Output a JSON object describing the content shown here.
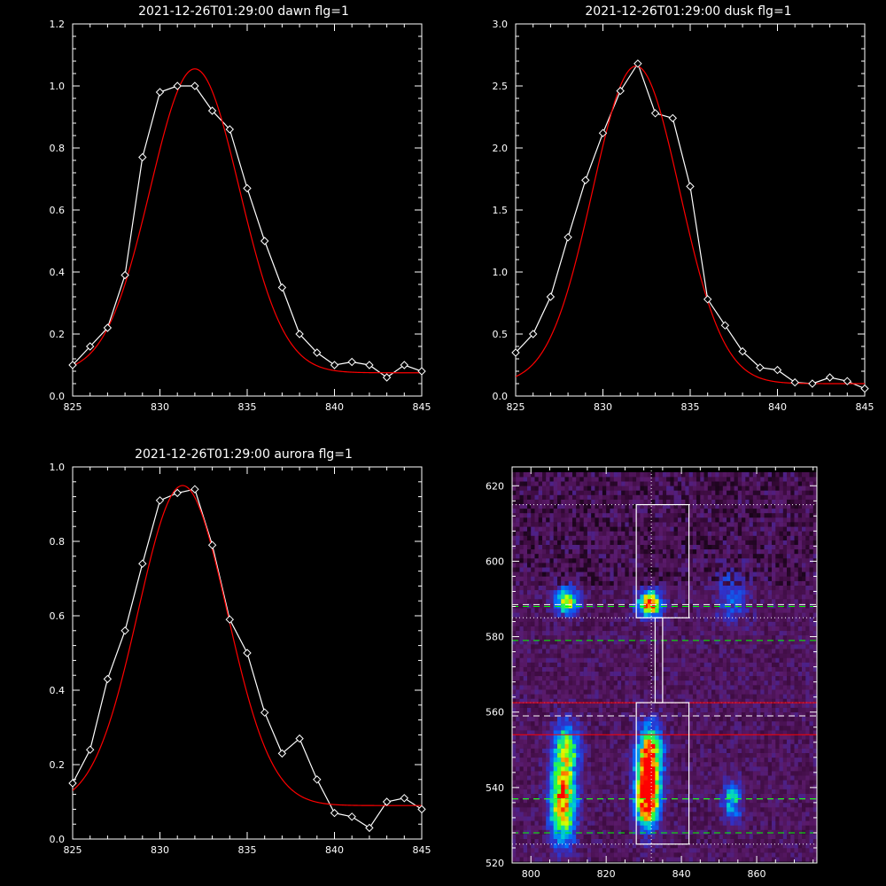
{
  "chart_data": [
    {
      "type": "line",
      "title": "2021-12-26T01:29:00 dawn flg=1",
      "xlim": [
        825,
        845
      ],
      "ylim": [
        0.0,
        1.2
      ],
      "xticks": [
        825,
        830,
        835,
        840,
        845
      ],
      "xtick_labels": [
        "825",
        "830",
        "835",
        "840",
        "845"
      ],
      "yticks": [
        0.0,
        0.2,
        0.4,
        0.6,
        0.8,
        1.0,
        1.2
      ],
      "ytick_labels": [
        "0.0",
        "0.2",
        "0.4",
        "0.6",
        "0.8",
        "1.0",
        "1.2"
      ],
      "series": [
        {
          "color": "#ffffff",
          "marker": "diamond",
          "x": [
            825,
            826,
            827,
            828,
            829,
            830,
            831,
            832,
            833,
            834,
            835,
            836,
            837,
            838,
            839,
            840,
            841,
            842,
            843,
            844,
            845
          ],
          "y": [
            0.1,
            0.16,
            0.22,
            0.39,
            0.77,
            0.98,
            1.0,
            1.0,
            0.92,
            0.86,
            0.67,
            0.5,
            0.35,
            0.2,
            0.14,
            0.1,
            0.11,
            0.1,
            0.06,
            0.1,
            0.08
          ]
        },
        {
          "color": "#ff0000",
          "fit": "gaussian",
          "amplitude": 0.98,
          "center": 832.0,
          "sigma": 2.55,
          "offset": 0.075
        }
      ]
    },
    {
      "type": "line",
      "title": "2021-12-26T01:29:00 dusk flg=1",
      "xlim": [
        825,
        845
      ],
      "ylim": [
        0.0,
        3.0
      ],
      "xticks": [
        825,
        830,
        835,
        840,
        845
      ],
      "xtick_labels": [
        "825",
        "830",
        "835",
        "840",
        "845"
      ],
      "yticks": [
        0.0,
        0.5,
        1.0,
        1.5,
        2.0,
        2.5,
        3.0
      ],
      "ytick_labels": [
        "0.0",
        "0.5",
        "1.0",
        "1.5",
        "2.0",
        "2.5",
        "3.0"
      ],
      "series": [
        {
          "color": "#ffffff",
          "marker": "diamond",
          "x": [
            825,
            826,
            827,
            828,
            829,
            830,
            831,
            832,
            833,
            834,
            835,
            836,
            837,
            838,
            839,
            840,
            841,
            842,
            843,
            844,
            845
          ],
          "y": [
            0.35,
            0.5,
            0.8,
            1.28,
            1.74,
            2.12,
            2.46,
            2.68,
            2.28,
            2.24,
            1.69,
            0.78,
            0.57,
            0.36,
            0.23,
            0.21,
            0.11,
            0.1,
            0.15,
            0.12,
            0.06
          ]
        },
        {
          "color": "#ff0000",
          "fit": "gaussian",
          "amplitude": 2.56,
          "center": 831.9,
          "sigma": 2.5,
          "offset": 0.1
        }
      ]
    },
    {
      "type": "line",
      "title": "2021-12-26T01:29:00 aurora flg=1",
      "xlim": [
        825,
        845
      ],
      "ylim": [
        0.0,
        1.0
      ],
      "xticks": [
        825,
        830,
        835,
        840,
        845
      ],
      "xtick_labels": [
        "825",
        "830",
        "835",
        "840",
        "845"
      ],
      "yticks": [
        0.0,
        0.2,
        0.4,
        0.6,
        0.8,
        1.0
      ],
      "ytick_labels": [
        "0.0",
        "0.2",
        "0.4",
        "0.6",
        "0.8",
        "1.0"
      ],
      "series": [
        {
          "color": "#ffffff",
          "marker": "diamond",
          "x": [
            825,
            826,
            827,
            828,
            829,
            830,
            831,
            832,
            833,
            834,
            835,
            836,
            837,
            838,
            839,
            840,
            841,
            842,
            843,
            844,
            845
          ],
          "y": [
            0.15,
            0.24,
            0.43,
            0.56,
            0.74,
            0.91,
            0.93,
            0.94,
            0.79,
            0.59,
            0.5,
            0.34,
            0.23,
            0.27,
            0.16,
            0.07,
            0.06,
            0.03,
            0.1,
            0.11,
            0.08
          ]
        },
        {
          "color": "#ff0000",
          "fit": "gaussian",
          "amplitude": 0.86,
          "center": 831.3,
          "sigma": 2.55,
          "offset": 0.09
        }
      ]
    },
    {
      "type": "heatmap",
      "title": "",
      "xlim": [
        795,
        876
      ],
      "ylim": [
        520,
        625
      ],
      "xticks": [
        800,
        820,
        840,
        860
      ],
      "xtick_labels": [
        "800",
        "820",
        "840",
        "860"
      ],
      "yticks": [
        520,
        540,
        560,
        580,
        600,
        620
      ],
      "ytick_labels": [
        "520",
        "540",
        "560",
        "580",
        "600",
        "620"
      ],
      "colormap": [
        "#000000",
        "#3a0a3c",
        "#5a1a6a",
        "#3030c8",
        "#0070ff",
        "#00d0d0",
        "#30ff30",
        "#e0ff00",
        "#ff8000",
        "#ff0000"
      ],
      "emission_blobs": [
        {
          "x": 808,
          "y": 536,
          "width": 4,
          "height": 13,
          "peak": 0.72
        },
        {
          "x": 809,
          "y": 550,
          "width": 4,
          "height": 8,
          "peak": 0.45
        },
        {
          "x": 809,
          "y": 589,
          "width": 3.5,
          "height": 4,
          "peak": 0.62
        },
        {
          "x": 830.5,
          "y": 537,
          "width": 3.5,
          "height": 9,
          "peak": 1.0
        },
        {
          "x": 831,
          "y": 548,
          "width": 4,
          "height": 9,
          "peak": 0.72
        },
        {
          "x": 831,
          "y": 588,
          "width": 3.5,
          "height": 4,
          "peak": 0.78
        },
        {
          "x": 853,
          "y": 536,
          "width": 3,
          "height": 6,
          "peak": 0.38
        },
        {
          "x": 853,
          "y": 590,
          "width": 5,
          "height": 8,
          "peak": 0.22
        }
      ],
      "vertical_marker_x": 832,
      "boxes": [
        {
          "x0": 828,
          "x1": 842,
          "y0": 585,
          "y1": 615
        },
        {
          "x0": 833,
          "x1": 835,
          "y0": 562.5,
          "y1": 585
        },
        {
          "x0": 828,
          "x1": 842,
          "y0": 525,
          "y1": 562.5
        }
      ],
      "white_dotted_h": [
        615,
        585,
        562.5,
        525
      ],
      "white_dashed_h": [
        588.5,
        559,
        537
      ],
      "green_dashed_h": [
        588,
        579,
        537,
        528
      ],
      "red_solid_h": [
        562.5,
        554
      ]
    }
  ]
}
